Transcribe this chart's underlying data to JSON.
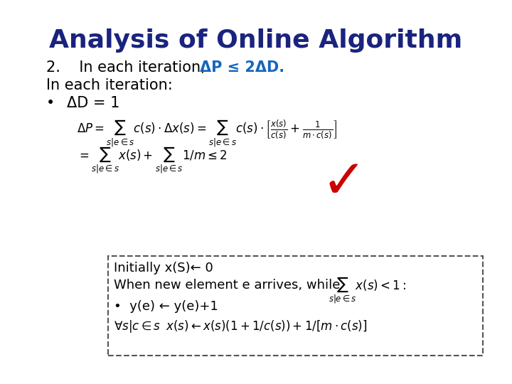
{
  "title": "Analysis of Online Algorithm",
  "title_color": "#1a237e",
  "title_fontsize": 26,
  "title_bold": true,
  "bg_color": "#ffffff",
  "text_color": "#000000",
  "blue_color": "#1565c0",
  "red_color": "#cc0000",
  "line1": "2.   In each iteration, ",
  "line1_bold": "\\u0394P \\u2264 2\\u0394D.",
  "line2": "In each iteration:",
  "bullet1": "\\u0394D = 1",
  "box_line1": "Initially x(S)\\u2190 0",
  "box_line2": "When new element e arrives, while",
  "box_line3": "\\u2022  y(e) \\u2190 y(e)+1"
}
